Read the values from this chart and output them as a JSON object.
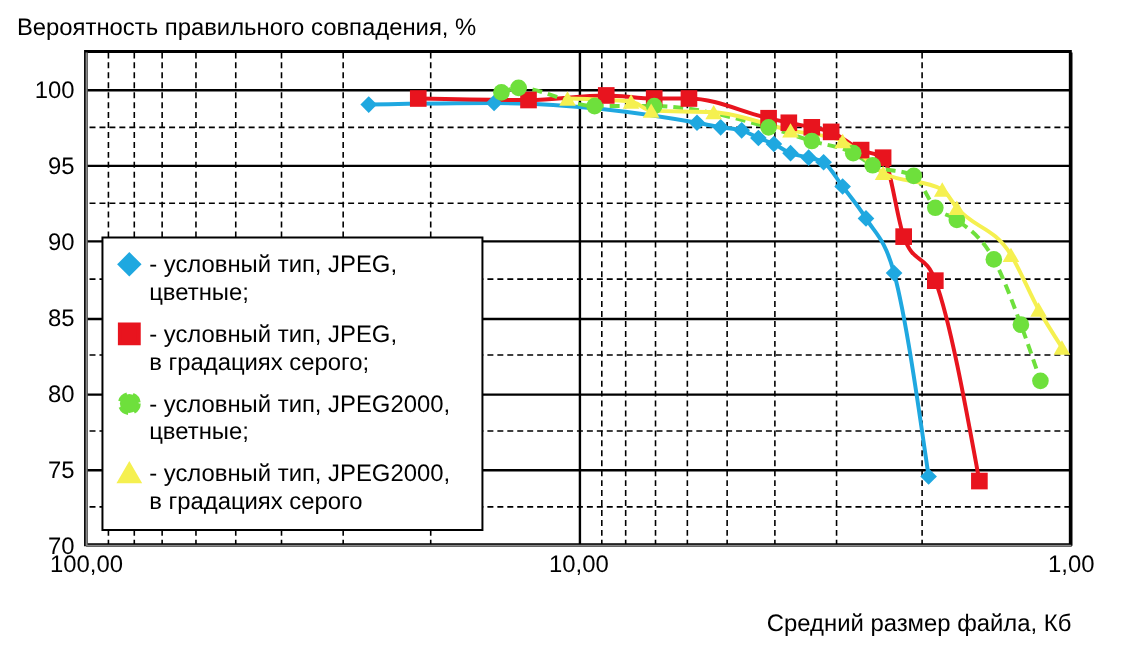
{
  "chart_data": {
    "type": "line",
    "xlabel": "Средний размер файла, Кб",
    "ylabel": "Вероятность правильного совпадения, %",
    "log": "x",
    "grid": true,
    "legend": "bottom left",
    "xlim": [
      100,
      1
    ],
    "ylim": [
      70,
      102.5
    ],
    "xticks": [
      {
        "value": 100,
        "label": "100,00"
      },
      {
        "value": 90,
        "label": null
      },
      {
        "value": 80,
        "label": null
      },
      {
        "value": 70,
        "label": null
      },
      {
        "value": 60,
        "label": null
      },
      {
        "value": 50,
        "label": null
      },
      {
        "value": 40,
        "label": null
      },
      {
        "value": 30,
        "label": null
      },
      {
        "value": 20,
        "label": null
      },
      {
        "value": 10,
        "label": "10,00"
      },
      {
        "value": 9,
        "label": null
      },
      {
        "value": 8,
        "label": null
      },
      {
        "value": 7,
        "label": null
      },
      {
        "value": 6,
        "label": null
      },
      {
        "value": 5,
        "label": null
      },
      {
        "value": 4,
        "label": null
      },
      {
        "value": 3,
        "label": null
      },
      {
        "value": 2,
        "label": null
      },
      {
        "value": 1,
        "label": "1,00"
      }
    ],
    "yticks": [
      70,
      {
        "value": 72.5,
        "label": null
      },
      75,
      {
        "value": 77.5,
        "label": null
      },
      80,
      {
        "value": 82.5,
        "label": null
      },
      85,
      {
        "value": 87.5,
        "label": null
      },
      90,
      {
        "value": 92.5,
        "label": null
      },
      95,
      {
        "value": 97.5,
        "label": null
      },
      100
    ],
    "series": [
      {
        "name": "- условный тип,   JPEG,\nцветные;",
        "color": "#1fa8e0",
        "marker": "diamond",
        "line_style": "solid",
        "x": [
          26.6,
          14.8,
          5.73,
          5.13,
          4.65,
          4.3,
          4.0,
          3.7,
          3.4,
          3.17,
          2.9,
          2.6,
          2.28,
          1.94
        ],
        "values": [
          99.0,
          99.1,
          97.8,
          97.5,
          97.3,
          96.8,
          96.4,
          95.8,
          95.5,
          95.2,
          93.6,
          91.5,
          87.9,
          74.5
        ]
      },
      {
        "name": "- условный тип,   JPEG,\nв градациях серого;",
        "color": "#e8141e",
        "marker": "square",
        "line_style": "solid",
        "x": [
          21.1,
          12.6,
          8.76,
          7.0,
          5.95,
          4.1,
          3.73,
          3.35,
          3.06,
          2.66,
          2.4,
          2.18,
          1.88,
          1.53
        ],
        "values": [
          99.4,
          99.3,
          99.6,
          99.4,
          99.4,
          98.1,
          97.8,
          97.5,
          97.2,
          96.0,
          95.5,
          90.3,
          87.4,
          74.2
        ]
      },
      {
        "name": "- условный тип,   JPEG2000,\nцветные;",
        "color": "#6ee03c",
        "marker": "circle",
        "line_style": "dashed",
        "x": [
          14.3,
          13.2,
          9.25,
          7.0,
          4.1,
          3.35,
          2.76,
          2.52,
          2.08,
          1.88,
          1.7,
          1.43,
          1.26,
          1.15
        ],
        "values": [
          99.8,
          100.1,
          98.9,
          98.9,
          97.5,
          96.6,
          95.8,
          95.0,
          94.3,
          92.2,
          91.4,
          88.8,
          84.5,
          80.8
        ]
      },
      {
        "name": "- условный тип,   JPEG2000,\nв градациях серого",
        "color": "#f5f050",
        "marker": "triangle",
        "line_style": "solid",
        "x": [
          10.5,
          7.8,
          7.1,
          5.3,
          3.7,
          2.9,
          2.4,
          1.82,
          1.7,
          1.32,
          1.16,
          1.04
        ],
        "values": [
          99.4,
          99.2,
          98.6,
          98.5,
          97.3,
          96.6,
          94.5,
          93.4,
          92.2,
          89.1,
          85.5,
          83.0
        ]
      }
    ]
  }
}
